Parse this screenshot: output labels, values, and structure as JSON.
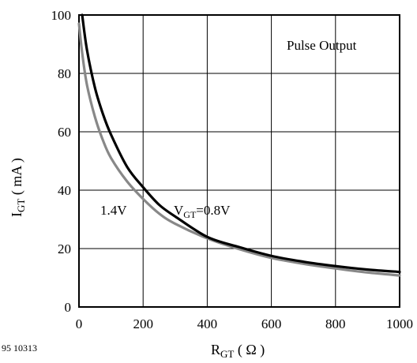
{
  "chart_data": {
    "type": "line",
    "xlabel": {
      "main": "R",
      "sub": "GT",
      "rest": " ( Ω )"
    },
    "ylabel": {
      "main": "I",
      "sub": "GT",
      "rest": " ( mA )"
    },
    "xlim": [
      0,
      1000
    ],
    "ylim": [
      0,
      100
    ],
    "x_ticks": [
      0,
      200,
      400,
      600,
      800,
      1000
    ],
    "y_ticks": [
      0,
      20,
      40,
      60,
      80,
      100
    ],
    "grid": true,
    "legend": "none",
    "colors": {
      "black_curve": "#000000",
      "gray_curve": "#888888"
    },
    "series": [
      {
        "name": "V_GT=0.8V",
        "color": "#000000",
        "x": [
          10,
          25,
          50,
          75,
          100,
          150,
          200,
          250,
          300,
          400,
          500,
          600,
          700,
          800,
          900,
          1000
        ],
        "y": [
          100,
          88,
          75,
          66,
          59,
          48,
          41,
          35,
          31,
          24,
          20.5,
          17.5,
          15.5,
          14,
          12.8,
          12
        ]
      },
      {
        "name": "1.4V",
        "color": "#888888",
        "x": [
          0,
          10,
          25,
          50,
          75,
          100,
          150,
          200,
          250,
          300,
          400,
          500,
          600,
          700,
          800,
          900,
          1000
        ],
        "y": [
          97,
          87,
          76,
          65,
          57,
          51,
          43,
          37,
          32,
          28.5,
          23.5,
          19.8,
          16.8,
          14.8,
          13.2,
          11.8,
          10.8
        ]
      }
    ],
    "annotations": {
      "pulse": "Pulse Output",
      "label_14": "1.4V",
      "label_08": {
        "main": "V",
        "sub": "GT",
        "rest": "=0.8V"
      }
    }
  },
  "figure_id": "95 10313"
}
